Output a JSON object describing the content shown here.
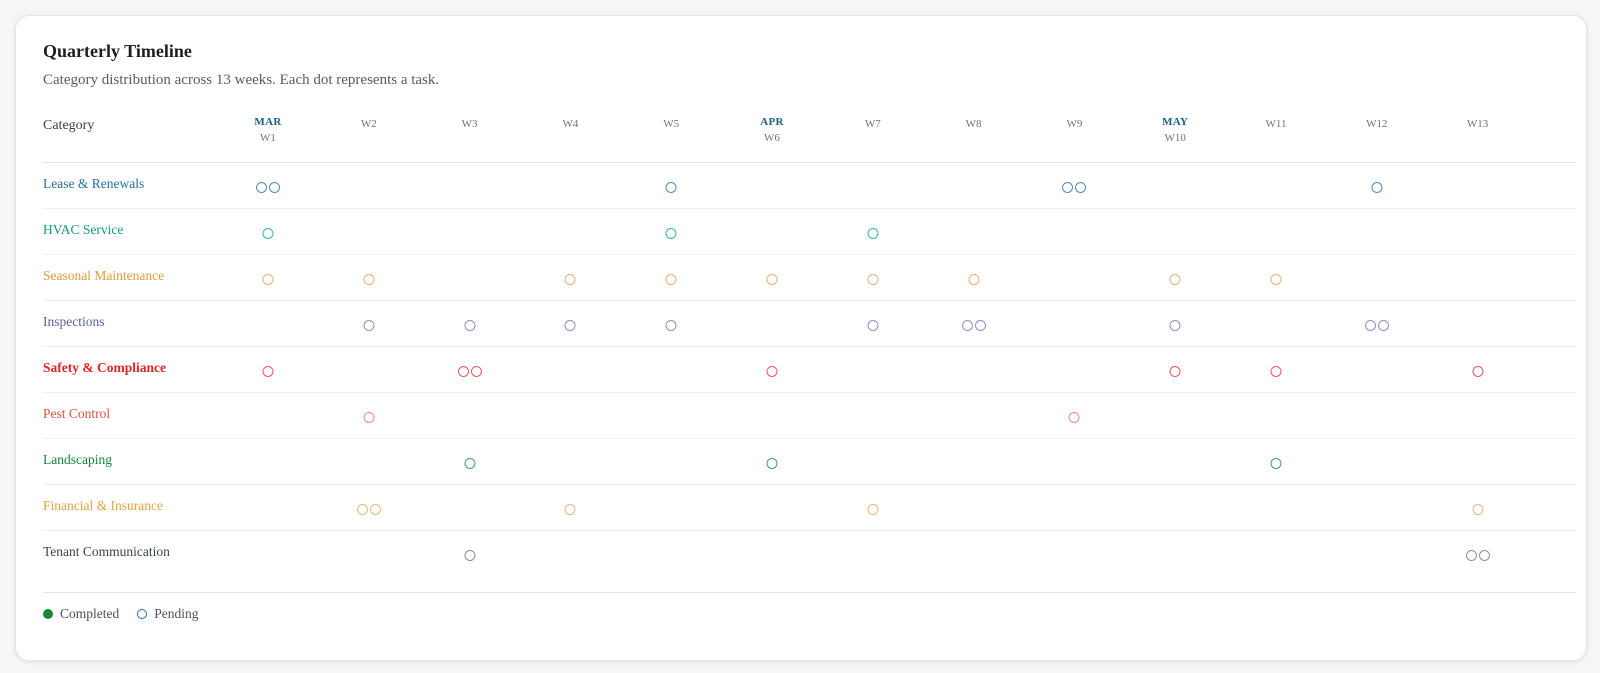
{
  "header": {
    "title": "Quarterly Timeline",
    "subtitle": "Category distribution across 13 weeks. Each dot represents a task.",
    "category_label": "Category"
  },
  "weeks": [
    {
      "label": "W1",
      "month": "MAR"
    },
    {
      "label": "W2",
      "month": ""
    },
    {
      "label": "W3",
      "month": ""
    },
    {
      "label": "W4",
      "month": ""
    },
    {
      "label": "W5",
      "month": ""
    },
    {
      "label": "W6",
      "month": "APR"
    },
    {
      "label": "W7",
      "month": ""
    },
    {
      "label": "W8",
      "month": ""
    },
    {
      "label": "W9",
      "month": ""
    },
    {
      "label": "W10",
      "month": "MAY"
    },
    {
      "label": "W11",
      "month": ""
    },
    {
      "label": "W12",
      "month": ""
    },
    {
      "label": "W13",
      "month": ""
    }
  ],
  "categories": [
    {
      "name": "Lease & Renewals",
      "color": "#1f6fa3",
      "dot_color": "#4f8db8",
      "bold": false,
      "tasks": {
        "1": 2,
        "5": 1,
        "9": 2,
        "12": 1
      }
    },
    {
      "name": "HVAC Service",
      "color": "#139a86",
      "dot_color": "#34b59e",
      "bold": false,
      "tasks": {
        "1": 1,
        "5": 1,
        "7": 1
      }
    },
    {
      "name": "Seasonal Maintenance",
      "color": "#e09a3b",
      "dot_color": "#e9b072",
      "bold": false,
      "tasks": {
        "1": 1,
        "2": 1,
        "4": 1,
        "5": 1,
        "6": 1,
        "7": 1,
        "8": 1,
        "10": 1,
        "11": 1
      }
    },
    {
      "name": "Inspections",
      "color": "#5a5f9a",
      "dot_color": "#8d90c0",
      "bold": false,
      "tasks": {
        "2": 1,
        "3": 1,
        "4": 1,
        "5": 1,
        "7": 1,
        "8": 2,
        "10": 1,
        "12": 2
      }
    },
    {
      "name": "Safety & Compliance",
      "color": "#dc2626",
      "dot_color": "#e35a5e",
      "bold": true,
      "tasks": {
        "1": 1,
        "3": 2,
        "6": 1,
        "10": 1,
        "11": 1,
        "13": 1
      }
    },
    {
      "name": "Pest Control",
      "color": "#e0533e",
      "dot_color": "#ea8a74",
      "bold": false,
      "tasks": {
        "2": 1,
        "9": 1
      }
    },
    {
      "name": "Landscaping",
      "color": "#16853a",
      "dot_color": "#3aa85d",
      "bold": false,
      "tasks": {
        "3": 1,
        "6": 1,
        "11": 1
      }
    },
    {
      "name": "Financial & Insurance",
      "color": "#e0a440",
      "dot_color": "#e6b878",
      "bold": false,
      "tasks": {
        "2": 2,
        "4": 1,
        "7": 1,
        "13": 1
      }
    },
    {
      "name": "Tenant Communication",
      "color": "#3b4250",
      "dot_color": "#8891a0",
      "bold": false,
      "tasks": {
        "3": 1,
        "13": 2
      }
    }
  ],
  "legend": {
    "completed_label": "Completed",
    "pending_label": "Pending",
    "completed_color": "#16853a",
    "pending_color": "#1f6fa3"
  }
}
